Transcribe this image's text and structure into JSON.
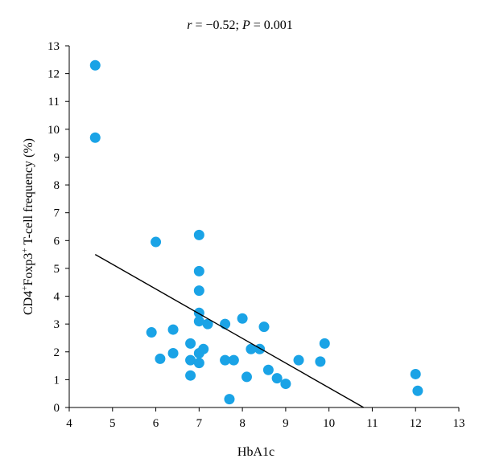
{
  "chart_data": {
    "type": "scatter",
    "annotation": {
      "r_symbol": "r",
      "r_text": " = −0.52; ",
      "p_symbol": "P",
      "p_text": " = 0.001"
    },
    "xlabel": "HbA1c",
    "ylabel": {
      "p1": "CD4",
      "sup1": "+",
      "p2": "Foxp3",
      "sup2": "+",
      "p3": " T-cell frequency (%)"
    },
    "xlim": [
      4,
      13
    ],
    "ylim": [
      0,
      13
    ],
    "xticks": [
      4,
      5,
      6,
      7,
      8,
      9,
      10,
      11,
      12,
      13
    ],
    "yticks": [
      0,
      1,
      2,
      3,
      4,
      5,
      6,
      7,
      8,
      9,
      10,
      11,
      12,
      13
    ],
    "marker_color": "#1aa3e6",
    "line_color": "#000000",
    "grid": false,
    "points": [
      {
        "x": 4.6,
        "y": 12.3
      },
      {
        "x": 4.6,
        "y": 9.7
      },
      {
        "x": 6.0,
        "y": 5.95
      },
      {
        "x": 7.0,
        "y": 6.2
      },
      {
        "x": 7.0,
        "y": 4.9
      },
      {
        "x": 7.0,
        "y": 4.2
      },
      {
        "x": 7.0,
        "y": 3.4
      },
      {
        "x": 7.0,
        "y": 3.1
      },
      {
        "x": 7.2,
        "y": 3.0
      },
      {
        "x": 5.9,
        "y": 2.7
      },
      {
        "x": 6.4,
        "y": 2.8
      },
      {
        "x": 6.1,
        "y": 1.75
      },
      {
        "x": 6.4,
        "y": 1.95
      },
      {
        "x": 6.8,
        "y": 2.3
      },
      {
        "x": 6.8,
        "y": 1.7
      },
      {
        "x": 6.8,
        "y": 1.15
      },
      {
        "x": 7.0,
        "y": 1.95
      },
      {
        "x": 7.0,
        "y": 1.6
      },
      {
        "x": 7.1,
        "y": 2.1
      },
      {
        "x": 7.6,
        "y": 3.0
      },
      {
        "x": 7.6,
        "y": 1.7
      },
      {
        "x": 7.8,
        "y": 1.7
      },
      {
        "x": 7.7,
        "y": 0.3
      },
      {
        "x": 8.0,
        "y": 3.2
      },
      {
        "x": 8.1,
        "y": 1.1
      },
      {
        "x": 8.2,
        "y": 2.1
      },
      {
        "x": 8.4,
        "y": 2.1
      },
      {
        "x": 8.5,
        "y": 2.9
      },
      {
        "x": 8.6,
        "y": 1.35
      },
      {
        "x": 8.8,
        "y": 1.05
      },
      {
        "x": 9.0,
        "y": 0.85
      },
      {
        "x": 9.3,
        "y": 1.7
      },
      {
        "x": 9.8,
        "y": 1.65
      },
      {
        "x": 9.9,
        "y": 2.3
      },
      {
        "x": 12.0,
        "y": 1.2
      },
      {
        "x": 12.05,
        "y": 0.6
      }
    ],
    "trendline": {
      "x": [
        4.6,
        10.8
      ],
      "y": [
        5.5,
        0.0
      ]
    }
  }
}
